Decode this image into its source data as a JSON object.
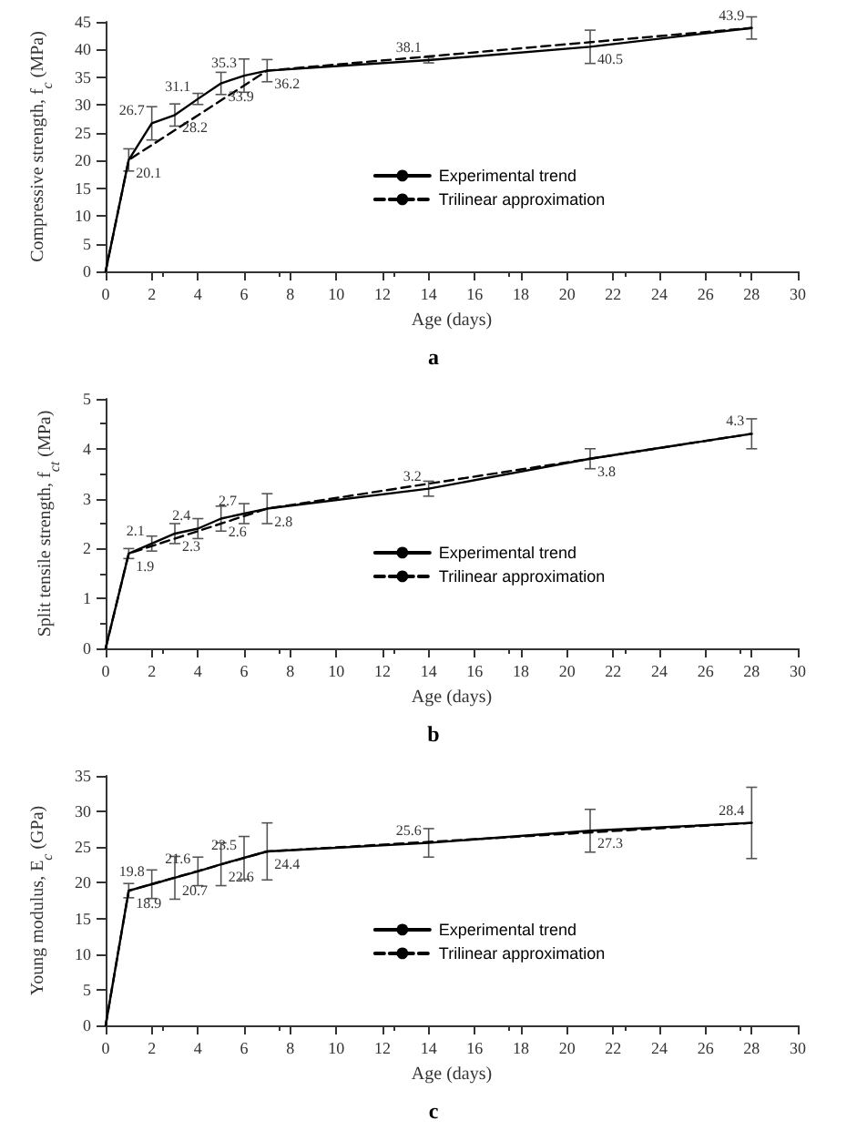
{
  "chart_data": [
    {
      "type": "line",
      "title": "a",
      "xlabel": "Age (days)",
      "ylabel": "Compressive strength, f$_{c}$ (MPa)",
      "x": [
        0,
        1,
        2,
        3,
        4,
        5,
        6,
        7,
        14,
        21,
        28
      ],
      "xlim": [
        0,
        30
      ],
      "xticks": [
        0,
        2,
        4,
        6,
        8,
        10,
        12,
        14,
        16,
        18,
        20,
        22,
        24,
        26,
        28,
        30
      ],
      "ylim": [
        0,
        45
      ],
      "yticks": [
        0,
        5,
        10,
        15,
        20,
        25,
        30,
        35,
        40,
        45
      ],
      "grid": false,
      "legend": "center",
      "marker": "none",
      "series": [
        {
          "name": "Experimental trend",
          "color": "#000000",
          "line_style": "solid",
          "values": [
            0,
            20.1,
            26.7,
            28.2,
            31.1,
            33.9,
            35.3,
            36.2,
            38.1,
            40.5,
            43.9
          ],
          "value_labels": [
            null,
            "20.1",
            "26.7",
            "28.2",
            "31.1",
            "33.9",
            "35.3",
            "36.2",
            "38.1",
            "40.5",
            "43.9"
          ],
          "errors": [
            null,
            2,
            3,
            2,
            1,
            2,
            3,
            2,
            0.5,
            3,
            2
          ]
        },
        {
          "name": "Trilinear approximation",
          "color": "#000000",
          "line_style": "dashed",
          "x": [
            0,
            1,
            7,
            28
          ],
          "values": [
            0,
            20.1,
            36.2,
            43.9
          ]
        }
      ]
    },
    {
      "type": "line",
      "title": "b",
      "xlabel": "Age (days)",
      "ylabel": "Split tensile strength, f$_{ct}$ (MPa)",
      "x": [
        0,
        1,
        2,
        3,
        4,
        5,
        6,
        7,
        14,
        21,
        28
      ],
      "xlim": [
        0,
        30
      ],
      "xticks": [
        0,
        2,
        4,
        6,
        8,
        10,
        12,
        14,
        16,
        18,
        20,
        22,
        24,
        26,
        28,
        30
      ],
      "ylim": [
        0,
        5
      ],
      "yticks": [
        0,
        1,
        2,
        3,
        4,
        5
      ],
      "grid": false,
      "legend": "center",
      "marker": "none",
      "series": [
        {
          "name": "Experimental trend",
          "color": "#000000",
          "line_style": "solid",
          "values": [
            0,
            1.9,
            2.1,
            2.3,
            2.4,
            2.6,
            2.7,
            2.8,
            3.2,
            3.8,
            4.3
          ],
          "value_labels": [
            null,
            "1.9",
            "2.1",
            "2.3",
            "2.4",
            "2.6",
            "2.7",
            "2.8",
            "3.2",
            "3.8",
            "4.3"
          ],
          "errors": [
            null,
            0.1,
            0.15,
            0.2,
            0.2,
            0.25,
            0.2,
            0.3,
            0.15,
            0.2,
            0.3
          ]
        },
        {
          "name": "Trilinear approximation",
          "color": "#000000",
          "line_style": "dashed",
          "x": [
            0,
            1,
            7,
            28
          ],
          "values": [
            0,
            1.9,
            2.8,
            4.3
          ]
        }
      ]
    },
    {
      "type": "line",
      "title": "c",
      "xlabel": "Age (days)",
      "ylabel": "Young modulus, E$_{c}$ (GPa)",
      "x": [
        0,
        1,
        2,
        3,
        4,
        5,
        6,
        7,
        14,
        21,
        28
      ],
      "xlim": [
        0,
        30
      ],
      "xticks": [
        0,
        2,
        4,
        6,
        8,
        10,
        12,
        14,
        16,
        18,
        20,
        22,
        24,
        26,
        28,
        30
      ],
      "ylim": [
        0,
        35
      ],
      "yticks": [
        0,
        5,
        10,
        15,
        20,
        25,
        30,
        35
      ],
      "grid": false,
      "legend": "center",
      "marker": "none",
      "series": [
        {
          "name": "Experimental trend",
          "color": "#000000",
          "line_style": "solid",
          "values": [
            0,
            18.9,
            19.8,
            20.7,
            21.6,
            22.6,
            23.5,
            24.4,
            25.6,
            27.3,
            28.4
          ],
          "value_labels": [
            null,
            "18.9",
            "19.8",
            "20.7",
            "21.6",
            "22.6",
            "23.5",
            "24.4",
            "25.6",
            "27.3",
            "28.4"
          ],
          "errors": [
            null,
            1,
            2,
            3,
            2,
            3,
            3,
            4,
            2,
            3,
            5
          ]
        },
        {
          "name": "Trilinear approximation",
          "color": "#000000",
          "line_style": "dashed",
          "x": [
            0,
            1,
            7,
            28
          ],
          "values": [
            0,
            18.9,
            24.4,
            28.4
          ]
        }
      ]
    }
  ]
}
